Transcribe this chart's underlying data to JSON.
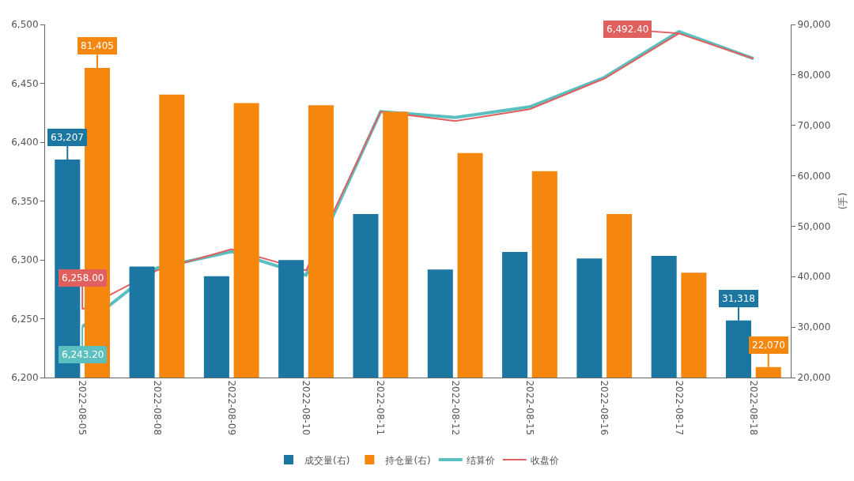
{
  "chart_data": {
    "type": "bar",
    "categories": [
      "2022-08-05",
      "2022-08-08",
      "2022-08-09",
      "2022-08-10",
      "2022-08-11",
      "2022-08-12",
      "2022-08-15",
      "2022-08-16",
      "2022-08-17",
      "2022-08-18"
    ],
    "series": [
      {
        "name": "成交量(右)",
        "axis": "y2",
        "color": "#1b77a2",
        "values": [
          63207,
          42000,
          40100,
          43300,
          52400,
          41400,
          44900,
          43600,
          44100,
          31318
        ],
        "value_labels": [
          "63,207",
          null,
          null,
          null,
          null,
          null,
          null,
          null,
          null,
          "31,318"
        ]
      },
      {
        "name": "持仓量(右)",
        "axis": "y2",
        "color": "#f5870f",
        "values": [
          81405,
          76100,
          74400,
          74000,
          72700,
          64500,
          60900,
          52400,
          40800,
          22070
        ],
        "value_labels": [
          "81,405",
          null,
          null,
          null,
          null,
          null,
          null,
          null,
          null,
          "22,070"
        ]
      },
      {
        "name": "结算价",
        "type": "line",
        "color": "#5bbfc0",
        "values": [
          6243.2,
          6293,
          6307,
          6287,
          6426,
          6421,
          6430,
          6455,
          6494,
          6471
        ],
        "value_labels": [
          "6,243.20",
          null,
          null,
          null,
          null,
          null,
          null,
          null,
          null,
          null
        ]
      },
      {
        "name": "收盘价",
        "type": "line",
        "color": "#e06060",
        "values": [
          6258,
          6291,
          6309,
          6291,
          6426,
          6418,
          6428,
          6454,
          6492.4,
          6471
        ],
        "value_labels": [
          "6,258.00",
          null,
          null,
          null,
          null,
          null,
          null,
          null,
          "6,492.40",
          null
        ]
      }
    ],
    "ylim": [
      6200,
      6500
    ],
    "yticks": [
      {
        "value": 6200,
        "label": "6,200"
      },
      {
        "value": 6250,
        "label": "6,250"
      },
      {
        "value": 6300,
        "label": "6,300"
      },
      {
        "value": 6350,
        "label": "6,350"
      },
      {
        "value": 6400,
        "label": "6,400"
      },
      {
        "value": 6450,
        "label": "6,450"
      },
      {
        "value": 6500,
        "label": "6,500"
      }
    ],
    "y2lim": [
      20000,
      90000
    ],
    "y2ticks": [
      {
        "value": 20000,
        "label": "20,000"
      },
      {
        "value": 30000,
        "label": "30,000"
      },
      {
        "value": 40000,
        "label": "40,000"
      },
      {
        "value": 50000,
        "label": "50,000"
      },
      {
        "value": 60000,
        "label": "60,000"
      },
      {
        "value": 70000,
        "label": "70,000"
      },
      {
        "value": 80000,
        "label": "80,000"
      },
      {
        "value": 90000,
        "label": "90,000"
      }
    ],
    "y2label": "(手)",
    "grid": false,
    "legend": "bottom",
    "marker": "none",
    "line_style": "solid"
  }
}
